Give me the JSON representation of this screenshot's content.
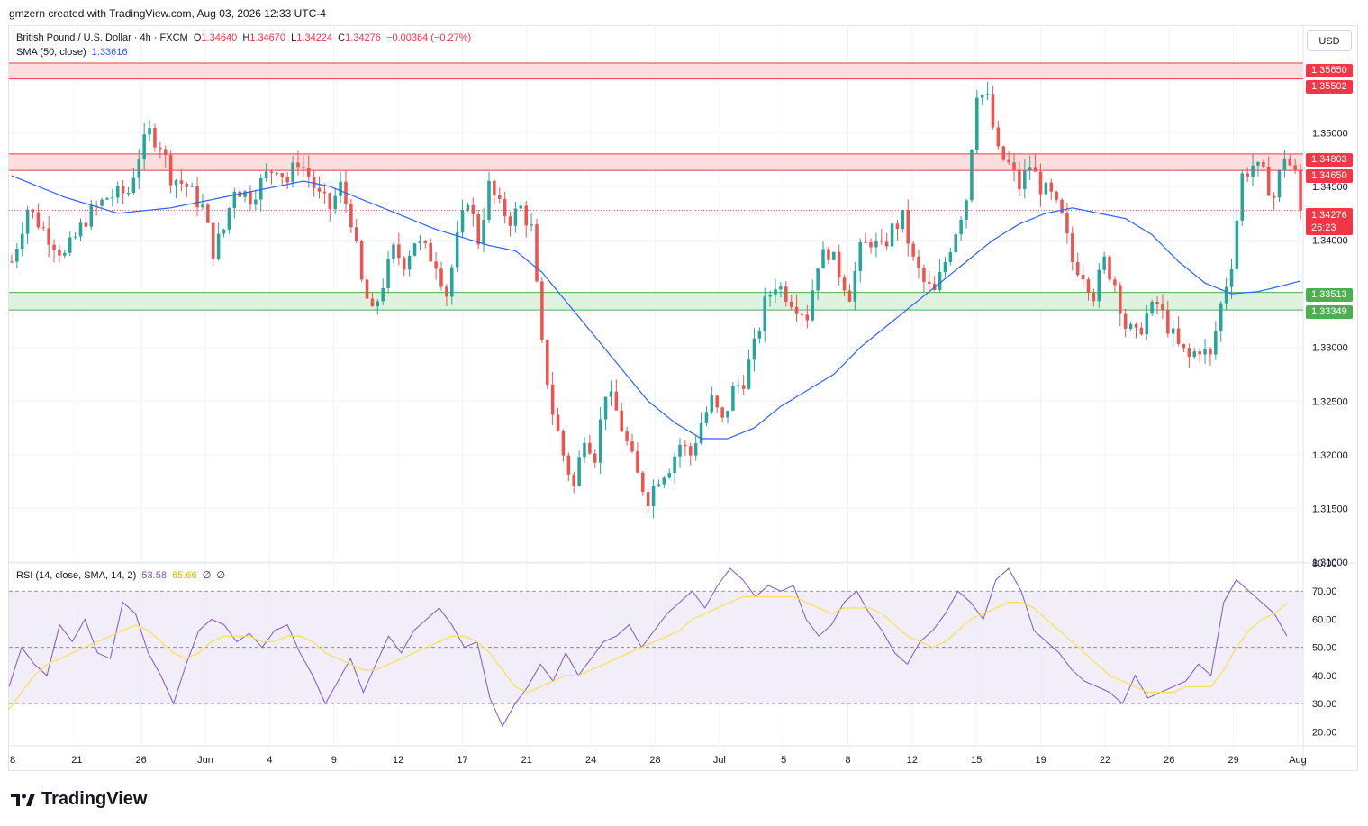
{
  "credit": "gmzern created with TradingView.com, Aug 03, 2026 12:33 UTC-4",
  "currency": "USD",
  "brand": "TradingView",
  "legend": {
    "symbol": "British Pound / U.S. Dollar · 4h · FXCM",
    "o_label": "O",
    "o": "1.34640",
    "h_label": "H",
    "h": "1.34670",
    "l_label": "L",
    "l": "1.34224",
    "c_label": "C",
    "c": "1.34276",
    "change": "−0.00364 (−0.27%)",
    "sma_label": "SMA (50, close)",
    "sma_value": "1.33616",
    "rsi_label": "RSI (14, close, SMA, 14, 2)",
    "rsi_value": "53.58",
    "rsi_ma_value": "65.66",
    "rsi_extra1": "∅",
    "rsi_extra2": "∅"
  },
  "colors": {
    "up": "#26a69a",
    "down": "#ef5350",
    "sma": "#2962ff",
    "rsi": "#7e57c2",
    "rsi_ma": "#f7e15a",
    "resistance_fill": "#fbdede",
    "resistance_line": "#f23645",
    "support_fill": "#dff2df",
    "support_line": "#4caf50"
  },
  "price_labels": {
    "r1_top": "1.35650",
    "r1_bot": "1.35502",
    "r2_top": "1.34803",
    "r2_bot": "1.34650",
    "last": "1.34276",
    "countdown": "26:23",
    "s_top": "1.33513",
    "s_bot": "1.33349"
  },
  "chart_data": [
    {
      "type": "candlestick",
      "title": "British Pound / U.S. Dollar · 4h · FXCM",
      "ylim": [
        1.31,
        1.357
      ],
      "price_ticks": [
        "1.35000",
        "1.34500",
        "1.34000",
        "1.33000",
        "1.32500",
        "1.32000",
        "1.31500",
        "1.31000"
      ],
      "x_ticks": [
        "8",
        "21",
        "26",
        "Jun",
        "4",
        "9",
        "12",
        "17",
        "21",
        "24",
        "28",
        "Jul",
        "5",
        "8",
        "12",
        "15",
        "19",
        "22",
        "26",
        "29",
        "Aug"
      ],
      "zones": [
        {
          "kind": "resistance",
          "top": 1.3565,
          "bottom": 1.35502
        },
        {
          "kind": "resistance",
          "top": 1.34803,
          "bottom": 1.3465
        },
        {
          "kind": "support",
          "top": 1.33513,
          "bottom": 1.33349
        }
      ],
      "last_price": 1.34276,
      "close_path": [
        [
          0,
          1.338
        ],
        [
          3,
          1.343
        ],
        [
          6,
          1.341
        ],
        [
          10,
          1.3385
        ],
        [
          14,
          1.342
        ],
        [
          18,
          1.344
        ],
        [
          22,
          1.3445
        ],
        [
          24,
          1.348
        ],
        [
          26,
          1.35
        ],
        [
          28,
          1.349
        ],
        [
          30,
          1.346
        ],
        [
          33,
          1.345
        ],
        [
          36,
          1.343
        ],
        [
          38,
          1.339
        ],
        [
          40,
          1.341
        ],
        [
          42,
          1.345
        ],
        [
          45,
          1.344
        ],
        [
          48,
          1.346
        ],
        [
          50,
          1.347
        ],
        [
          52,
          1.3455
        ],
        [
          54,
          1.3475
        ],
        [
          56,
          1.346
        ],
        [
          58,
          1.344
        ],
        [
          60,
          1.343
        ],
        [
          62,
          1.345
        ],
        [
          64,
          1.342
        ],
        [
          66,
          1.336
        ],
        [
          68,
          1.333
        ],
        [
          70,
          1.336
        ],
        [
          72,
          1.339
        ],
        [
          74,
          1.338
        ],
        [
          76,
          1.34
        ],
        [
          78,
          1.339
        ],
        [
          80,
          1.338
        ],
        [
          82,
          1.335
        ],
        [
          84,
          1.34
        ],
        [
          86,
          1.344
        ],
        [
          88,
          1.34
        ],
        [
          90,
          1.345
        ],
        [
          92,
          1.343
        ],
        [
          94,
          1.342
        ],
        [
          96,
          1.343
        ],
        [
          98,
          1.341
        ],
        [
          100,
          1.33
        ],
        [
          102,
          1.324
        ],
        [
          104,
          1.32
        ],
        [
          106,
          1.317
        ],
        [
          108,
          1.322
        ],
        [
          110,
          1.32
        ],
        [
          112,
          1.326
        ],
        [
          114,
          1.324
        ],
        [
          116,
          1.321
        ],
        [
          118,
          1.318
        ],
        [
          120,
          1.316
        ],
        [
          122,
          1.318
        ],
        [
          124,
          1.319
        ],
        [
          126,
          1.321
        ],
        [
          128,
          1.32
        ],
        [
          130,
          1.323
        ],
        [
          132,
          1.325
        ],
        [
          134,
          1.323
        ],
        [
          136,
          1.326
        ],
        [
          138,
          1.327
        ],
        [
          140,
          1.33
        ],
        [
          142,
          1.334
        ],
        [
          144,
          1.336
        ],
        [
          146,
          1.335
        ],
        [
          148,
          1.334
        ],
        [
          150,
          1.333
        ],
        [
          152,
          1.338
        ],
        [
          154,
          1.339
        ],
        [
          156,
          1.337
        ],
        [
          158,
          1.335
        ],
        [
          160,
          1.339
        ],
        [
          162,
          1.34
        ],
        [
          164,
          1.339
        ],
        [
          166,
          1.341
        ],
        [
          168,
          1.342
        ],
        [
          170,
          1.338
        ],
        [
          172,
          1.336
        ],
        [
          174,
          1.335
        ],
        [
          176,
          1.338
        ],
        [
          178,
          1.341
        ],
        [
          180,
          1.344
        ],
        [
          182,
          1.354
        ],
        [
          184,
          1.353
        ],
        [
          186,
          1.348
        ],
        [
          188,
          1.347
        ],
        [
          190,
          1.345
        ],
        [
          192,
          1.347
        ],
        [
          194,
          1.345
        ],
        [
          196,
          1.344
        ],
        [
          198,
          1.342
        ],
        [
          200,
          1.338
        ],
        [
          202,
          1.337
        ],
        [
          204,
          1.335
        ],
        [
          206,
          1.338
        ],
        [
          208,
          1.336
        ],
        [
          210,
          1.332
        ],
        [
          212,
          1.331
        ],
        [
          214,
          1.333
        ],
        [
          216,
          1.334
        ],
        [
          218,
          1.332
        ],
        [
          220,
          1.33
        ],
        [
          222,
          1.329
        ],
        [
          224,
          1.33
        ],
        [
          226,
          1.329
        ],
        [
          228,
          1.334
        ],
        [
          230,
          1.338
        ],
        [
          232,
          1.346
        ],
        [
          234,
          1.347
        ],
        [
          236,
          1.346
        ],
        [
          238,
          1.344
        ],
        [
          240,
          1.348
        ],
        [
          242,
          1.346
        ],
        [
          243,
          1.3428
        ]
      ],
      "sma_path": [
        [
          0,
          1.346
        ],
        [
          10,
          1.344
        ],
        [
          20,
          1.3425
        ],
        [
          30,
          1.343
        ],
        [
          40,
          1.344
        ],
        [
          50,
          1.345
        ],
        [
          55,
          1.3455
        ],
        [
          60,
          1.345
        ],
        [
          65,
          1.344
        ],
        [
          70,
          1.343
        ],
        [
          75,
          1.342
        ],
        [
          80,
          1.341
        ],
        [
          90,
          1.3395
        ],
        [
          95,
          1.339
        ],
        [
          100,
          1.337
        ],
        [
          105,
          1.334
        ],
        [
          110,
          1.331
        ],
        [
          115,
          1.328
        ],
        [
          120,
          1.325
        ],
        [
          125,
          1.323
        ],
        [
          130,
          1.3215
        ],
        [
          135,
          1.3215
        ],
        [
          140,
          1.3225
        ],
        [
          145,
          1.3245
        ],
        [
          150,
          1.326
        ],
        [
          155,
          1.3275
        ],
        [
          160,
          1.33
        ],
        [
          165,
          1.332
        ],
        [
          170,
          1.334
        ],
        [
          175,
          1.336
        ],
        [
          180,
          1.338
        ],
        [
          185,
          1.34
        ],
        [
          190,
          1.3415
        ],
        [
          195,
          1.3425
        ],
        [
          200,
          1.343
        ],
        [
          205,
          1.3425
        ],
        [
          210,
          1.342
        ],
        [
          215,
          1.3405
        ],
        [
          220,
          1.338
        ],
        [
          225,
          1.336
        ],
        [
          230,
          1.335
        ],
        [
          235,
          1.3352
        ],
        [
          240,
          1.3358
        ],
        [
          243,
          1.3362
        ]
      ]
    },
    {
      "type": "line",
      "title": "RSI (14, close, SMA, 14, 2)",
      "ylim": [
        15,
        80
      ],
      "y_ticks": [
        80,
        70,
        60,
        50,
        40,
        30,
        20
      ],
      "bands": [
        70,
        50,
        30
      ],
      "series": [
        {
          "name": "RSI",
          "values": [
            36,
            50,
            44,
            40,
            58,
            52,
            60,
            48,
            46,
            66,
            62,
            48,
            40,
            30,
            44,
            56,
            60,
            58,
            52,
            55,
            50,
            56,
            58,
            48,
            40,
            30,
            38,
            46,
            34,
            44,
            54,
            48,
            56,
            60,
            64,
            58,
            50,
            52,
            32,
            22,
            30,
            36,
            44,
            38,
            48,
            40,
            46,
            52,
            54,
            58,
            50,
            56,
            62,
            66,
            70,
            64,
            72,
            78,
            74,
            68,
            72,
            70,
            72,
            60,
            54,
            58,
            66,
            70,
            62,
            56,
            48,
            44,
            52,
            56,
            62,
            70,
            66,
            60,
            74,
            78,
            70,
            56,
            52,
            48,
            42,
            38,
            36,
            34,
            30,
            40,
            32,
            34,
            36,
            38,
            44,
            40,
            66,
            74,
            70,
            66,
            62,
            54
          ]
        },
        {
          "name": "RSI-based MA",
          "values": [
            28,
            34,
            40,
            44,
            46,
            48,
            50,
            52,
            54,
            56,
            58,
            56,
            52,
            48,
            46,
            48,
            52,
            54,
            54,
            54,
            52,
            52,
            54,
            54,
            52,
            48,
            46,
            44,
            42,
            42,
            44,
            46,
            48,
            50,
            52,
            54,
            54,
            52,
            48,
            42,
            36,
            34,
            36,
            38,
            40,
            40,
            42,
            44,
            46,
            48,
            50,
            52,
            54,
            56,
            60,
            62,
            64,
            66,
            68,
            68,
            68,
            68,
            68,
            66,
            64,
            62,
            64,
            64,
            64,
            62,
            58,
            54,
            52,
            50,
            52,
            56,
            60,
            62,
            64,
            66,
            66,
            64,
            60,
            56,
            52,
            48,
            44,
            40,
            38,
            36,
            34,
            34,
            34,
            36,
            36,
            36,
            42,
            50,
            56,
            60,
            62,
            65.66
          ]
        }
      ]
    }
  ]
}
